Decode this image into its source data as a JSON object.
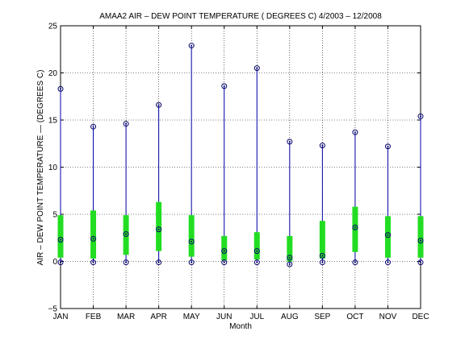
{
  "chart_data": {
    "type": "box",
    "title": "AMAA2  AIR – DEW POINT TEMPERATURE ( DEGREES C) 4/2003 – 12/2008",
    "xlabel": "Month",
    "ylabel": "AIR – DEW POINT TEMPERATURE  —  (DEGREES C)",
    "ylim": [
      -5,
      25
    ],
    "yticks": [
      -5,
      0,
      5,
      10,
      15,
      20,
      25
    ],
    "ytick_labels": [
      "−5",
      "0",
      "5",
      "10",
      "15",
      "20",
      "25"
    ],
    "grid": true,
    "categories": [
      "JAN",
      "FEB",
      "MAR",
      "APR",
      "MAY",
      "JUN",
      "JUL",
      "AUG",
      "SEP",
      "OCT",
      "NOV",
      "DEC"
    ],
    "min": [
      -0.1,
      -0.1,
      -0.1,
      -0.1,
      -0.1,
      -0.1,
      -0.1,
      -0.3,
      -0.1,
      -0.1,
      -0.1,
      -0.1
    ],
    "max": [
      18.3,
      14.3,
      14.6,
      16.6,
      22.9,
      18.6,
      20.5,
      12.7,
      12.3,
      13.7,
      12.2,
      15.4
    ],
    "mean": [
      2.3,
      2.4,
      2.9,
      3.4,
      2.1,
      1.1,
      1.1,
      0.4,
      0.6,
      3.6,
      2.8,
      2.2
    ],
    "q_low": [
      0.4,
      0.3,
      0.7,
      1.1,
      0.5,
      0.1,
      0.2,
      0.0,
      0.3,
      1.0,
      0.4,
      0.4
    ],
    "q_high": [
      4.9,
      5.4,
      4.9,
      6.3,
      4.9,
      2.7,
      3.1,
      2.7,
      4.3,
      5.8,
      4.8,
      4.8
    ],
    "colors": {
      "whisker": "#0000aa",
      "box": "#22dd22",
      "marker": "#000066",
      "grid": "#000000"
    }
  }
}
